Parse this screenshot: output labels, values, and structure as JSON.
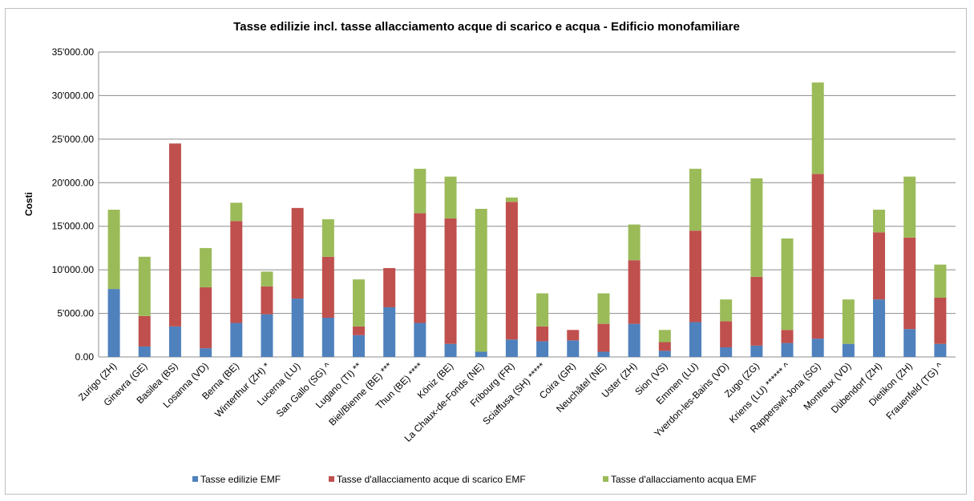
{
  "chart_data": {
    "type": "bar",
    "stacked": true,
    "title": "Tasse edilizie incl. tasse allacciamento acque di scarico e acqua - Edificio monofamiliare",
    "xlabel": "",
    "ylabel": "Costi",
    "ylim": [
      0,
      35000
    ],
    "yticks": [
      0,
      5000,
      10000,
      15000,
      20000,
      25000,
      30000,
      35000
    ],
    "ytick_labels": [
      "0.00",
      "5'000.00",
      "10'000.00",
      "15'000.00",
      "20'000.00",
      "25'000.00",
      "30'000.00",
      "35'000.00"
    ],
    "grid": true,
    "legend_position": "bottom",
    "categories": [
      "Zurigo (ZH)",
      "Ginevra (GE)",
      "Basilea (BS)",
      "Losanna (VD)",
      "Berna (BE)",
      "Winterthur (ZH) *",
      "Lucerna (LU)",
      "San Gallo (SG) ^",
      "Lugano (TI) **",
      "Biel/Bienne (BE) ***",
      "Thun (BE) ****",
      "Köniz (BE)",
      "La Chaux-de-Fonds (NE)",
      "Fribourg (FR)",
      "Sciaffusa (SH) *****",
      "Coira (GR)",
      "Neuchâtel (NE)",
      "Uster (ZH)",
      "Sion (VS)",
      "Emmen (LU)",
      "Yverdon-les-Bains (VD)",
      "Zugo (ZG)",
      "Kriens (LU) ****** ^",
      "Rapperswil-Jona (SG)",
      "Montreux (VD)",
      "Dübendorf (ZH)",
      "Dietikon (ZH)",
      "Frauenfeld (TG) ^"
    ],
    "series": [
      {
        "name": "Tasse edilizie EMF",
        "color": "#4f81bd",
        "values": [
          7800,
          1200,
          3500,
          1000,
          3900,
          4900,
          6700,
          4500,
          2500,
          5700,
          3900,
          1500,
          600,
          2000,
          1800,
          1900,
          600,
          3800,
          700,
          4000,
          1100,
          1300,
          1600,
          2100,
          1500,
          6600,
          3200,
          1500
        ]
      },
      {
        "name": "Tasse d'allacciamento acque di scarico EMF",
        "color": "#c0504d",
        "values": [
          0,
          3500,
          21000,
          7000,
          11700,
          3200,
          10400,
          7000,
          1000,
          4500,
          12600,
          14400,
          0,
          15800,
          1700,
          1200,
          3200,
          7300,
          1000,
          10500,
          3000,
          7900,
          1500,
          18900,
          0,
          7700,
          10500,
          5300
        ]
      },
      {
        "name": "Tasse d'allacciamento acqua EMF",
        "color": "#9bbb59",
        "values": [
          9100,
          6800,
          0,
          4500,
          2100,
          1700,
          0,
          4300,
          5400,
          0,
          5100,
          4800,
          16400,
          500,
          3800,
          0,
          3500,
          4100,
          1400,
          7100,
          2500,
          11300,
          10500,
          10500,
          5100,
          2600,
          7000,
          3800
        ]
      }
    ]
  }
}
